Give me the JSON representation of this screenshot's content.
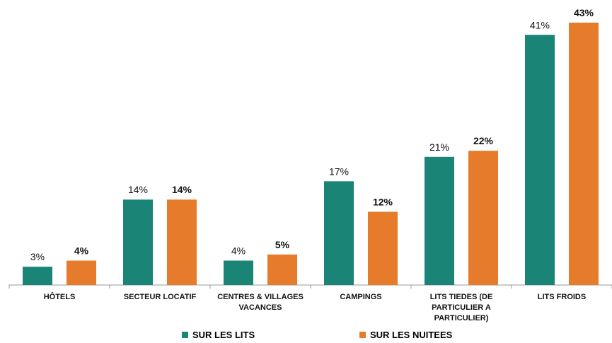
{
  "chart_data": {
    "type": "bar",
    "categories": [
      "HÔTELS",
      "SECTEUR LOCATIF",
      "CENTRES & VILLAGES VACANCES",
      "CAMPINGS",
      "LITS TIEDES (DE PARTICULIER A PARTICULIER)",
      "LITS FROIDS"
    ],
    "series": [
      {
        "name": "SUR LES LITS",
        "color": "#1a8476",
        "values": [
          3,
          14,
          4,
          17,
          21,
          41
        ],
        "value_labels": [
          "3%",
          "14%",
          "4%",
          "17%",
          "21%",
          "41%"
        ]
      },
      {
        "name": "SUR LES NUITEES",
        "color": "#e57b2b",
        "values": [
          4,
          14,
          5,
          12,
          22,
          43
        ],
        "value_labels": [
          "4%",
          "14%",
          "5%",
          "12%",
          "22%",
          "43%"
        ]
      }
    ]
  }
}
